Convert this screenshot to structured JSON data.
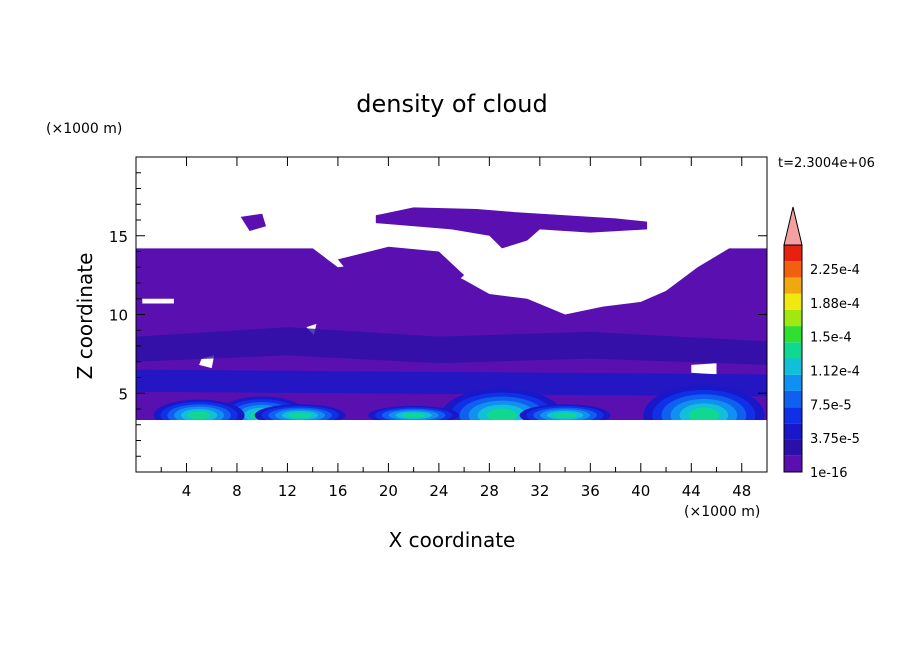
{
  "chart_data": {
    "type": "heatmap",
    "title": "density of cloud",
    "xlabel": "X coordinate",
    "ylabel": "Z coordinate",
    "x_unit": "(×1000 m)",
    "y_unit": "(×1000 m)",
    "time_label": "t=2.3004e+06",
    "xlim": [
      0,
      50
    ],
    "ylim": [
      0,
      20
    ],
    "x_ticks": [
      4,
      8,
      12,
      16,
      20,
      24,
      28,
      32,
      36,
      40,
      44,
      48
    ],
    "y_ticks": [
      5,
      10,
      15
    ],
    "colorbar": {
      "labels": [
        "2.25e-4",
        "1.88e-4",
        "1.5e-4",
        "1.12e-4",
        "7.5e-5",
        "3.75e-5",
        "1e-16"
      ],
      "levels": [
        1e-16,
        1.875e-05,
        3.75e-05,
        5.625e-05,
        7.5e-05,
        9.375e-05,
        0.000112,
        0.000131,
        0.00015,
        0.000169,
        0.000188,
        0.000206,
        0.000225,
        0.000244
      ],
      "colors": [
        "#5a10b0",
        "#2a10a8",
        "#1818c8",
        "#1030e8",
        "#1060f0",
        "#1090f0",
        "#10c0d8",
        "#10d890",
        "#30e030",
        "#a0e810",
        "#f0e810",
        "#f0a810",
        "#f06010",
        "#e82010"
      ],
      "extend_color": "#f4a0a0"
    },
    "grid": false,
    "features": {
      "lower_cloud_layer_z": [
        3.3,
        14.2
      ],
      "upper_cloud_layer_z": [
        12.5,
        16.8
      ],
      "peak_cores_x": [
        10,
        29,
        45
      ],
      "peak_cores_z_top": [
        4.8,
        5.3,
        5.5
      ]
    }
  }
}
